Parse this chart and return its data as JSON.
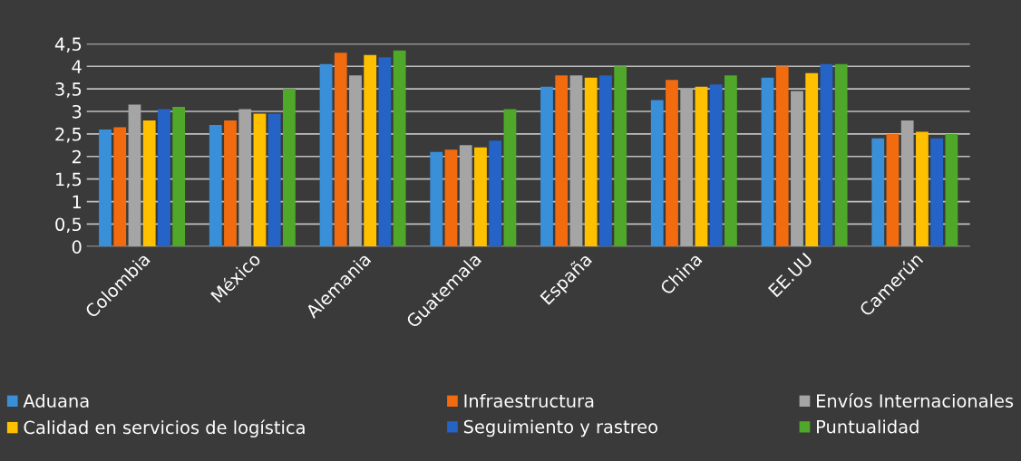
{
  "chart_data": {
    "type": "bar",
    "categories": [
      "Colombia",
      "México",
      "Alemania",
      "Guatemala",
      "España",
      "China",
      "EE.UU",
      "Camerún"
    ],
    "series": [
      {
        "name": "Aduana",
        "color": "#3a8fd9",
        "values": [
          2.6,
          2.7,
          4.05,
          2.1,
          3.55,
          3.25,
          3.75,
          2.4
        ]
      },
      {
        "name": "Infraestructura",
        "color": "#f26b0f",
        "values": [
          2.65,
          2.8,
          4.3,
          2.15,
          3.8,
          3.7,
          4.0,
          2.5
        ]
      },
      {
        "name": "Envíos Internacionales",
        "color": "#a5a5a5",
        "values": [
          3.15,
          3.05,
          3.8,
          2.25,
          3.8,
          3.5,
          3.45,
          2.8
        ]
      },
      {
        "name": "Calidad en servicios de logística",
        "color": "#ffc000",
        "values": [
          2.8,
          2.95,
          4.25,
          2.2,
          3.75,
          3.55,
          3.85,
          2.55
        ]
      },
      {
        "name": "Seguimiento y rastreo",
        "color": "#2563c7",
        "values": [
          3.05,
          2.95,
          4.2,
          2.35,
          3.8,
          3.6,
          4.05,
          2.4
        ]
      },
      {
        "name": "Puntualidad",
        "color": "#4fa82a",
        "values": [
          3.1,
          3.5,
          4.35,
          3.05,
          4.0,
          3.8,
          4.05,
          2.5
        ]
      }
    ],
    "ylim": [
      0,
      4.5
    ],
    "yticks": [
      0,
      {
        "value": 0.5,
        "label": "0,5"
      },
      1,
      {
        "value": 1.5,
        "label": "1,5"
      },
      2,
      {
        "value": 2.5,
        "label": "2,5"
      },
      3,
      {
        "value": 3.5,
        "label": "3,5"
      },
      4,
      {
        "value": 4.5,
        "label": "4,5"
      }
    ],
    "grid": "y",
    "legend": "bottom"
  }
}
